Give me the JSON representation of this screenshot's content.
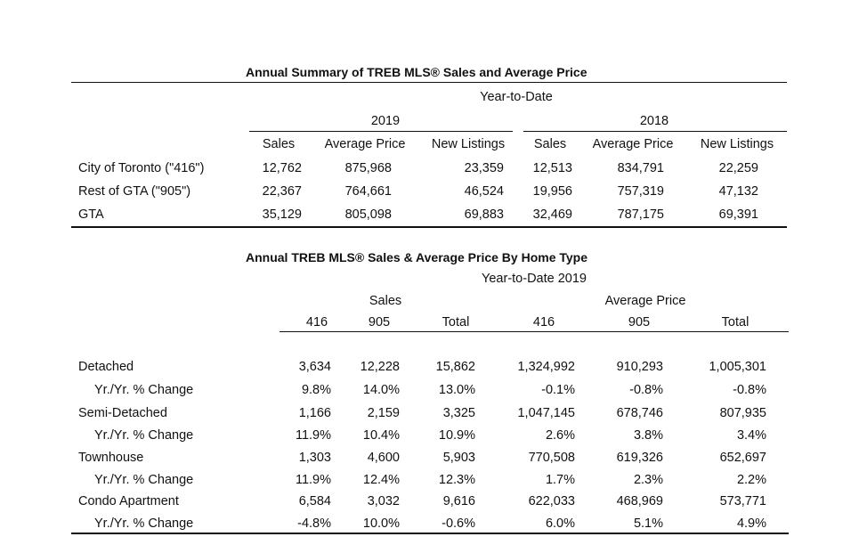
{
  "table1": {
    "title": "Annual Summary of TREB MLS® Sales and Average Price",
    "period": "Year-to-Date",
    "years": [
      "2019",
      "2018"
    ],
    "columns": [
      "Sales",
      "Average Price",
      "New Listings",
      "Sales",
      "Average Price",
      "New Listings"
    ],
    "rows": [
      {
        "label": "City of Toronto (\"416\")",
        "values": [
          "12,762",
          "875,968",
          "23,359",
          "12,513",
          "834,791",
          "22,259"
        ]
      },
      {
        "label": "Rest of GTA (\"905\")",
        "values": [
          "22,367",
          "764,661",
          "46,524",
          "19,956",
          "757,319",
          "47,132"
        ]
      },
      {
        "label": "GTA",
        "values": [
          "35,129",
          "805,098",
          "69,883",
          "32,469",
          "787,175",
          "69,391"
        ]
      }
    ]
  },
  "table2": {
    "title": "Annual TREB MLS® Sales & Average Price  By Home Type",
    "period": "Year-to-Date 2019",
    "groups": [
      "Sales",
      "Average Price"
    ],
    "columns": [
      "416",
      "905",
      "Total",
      "416",
      "905",
      "Total"
    ],
    "rows": [
      {
        "label": "Detached",
        "values": [
          "3,634",
          "12,228",
          "15,862",
          "1,324,992",
          "910,293",
          "1,005,301"
        ]
      },
      {
        "label": "Yr./Yr. % Change",
        "values": [
          "9.8%",
          "14.0%",
          "13.0%",
          "-0.1%",
          "-0.8%",
          "-0.8%"
        ]
      },
      {
        "label": "Semi-Detached",
        "values": [
          "1,166",
          "2,159",
          "3,325",
          "1,047,145",
          "678,746",
          "807,935"
        ]
      },
      {
        "label": "Yr./Yr. % Change",
        "values": [
          "11.9%",
          "10.4%",
          "10.9%",
          "2.6%",
          "3.8%",
          "3.4%"
        ]
      },
      {
        "label": "Townhouse",
        "values": [
          "1,303",
          "4,600",
          "5,903",
          "770,508",
          "619,326",
          "652,697"
        ]
      },
      {
        "label": "Yr./Yr. % Change",
        "values": [
          "11.9%",
          "12.4%",
          "12.3%",
          "1.7%",
          "2.3%",
          "2.2%"
        ]
      },
      {
        "label": "Condo Apartment",
        "values": [
          "6,584",
          "3,032",
          "9,616",
          "622,033",
          "468,969",
          "573,771"
        ]
      },
      {
        "label": "Yr./Yr. % Change",
        "values": [
          "-4.8%",
          "10.0%",
          "-0.6%",
          "6.0%",
          "5.1%",
          "4.9%"
        ]
      }
    ]
  }
}
